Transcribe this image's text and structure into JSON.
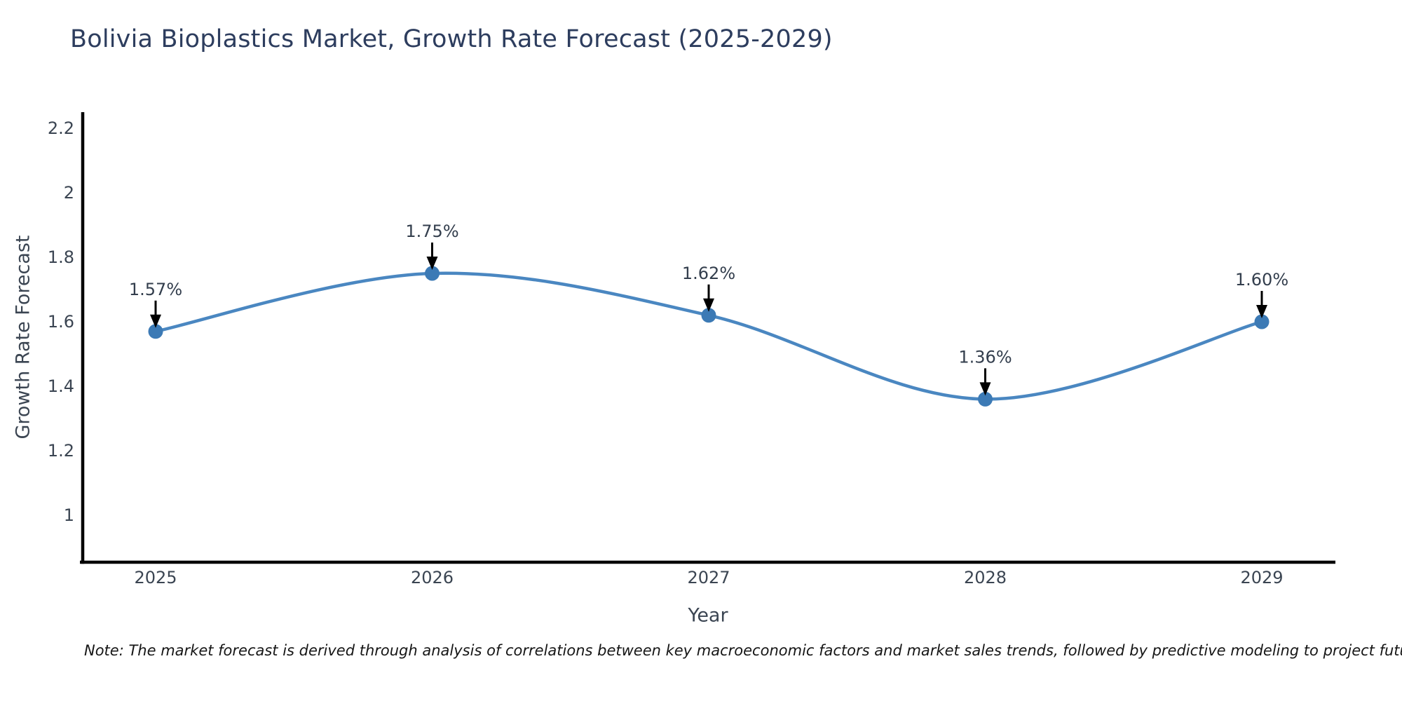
{
  "chart_data": {
    "type": "line",
    "title": "Bolivia Bioplastics Market, Growth Rate Forecast (2025-2029)",
    "xlabel": "Year",
    "ylabel": "Growth Rate Forecast",
    "categories": [
      "2025",
      "2026",
      "2027",
      "2028",
      "2029"
    ],
    "values": [
      1.57,
      1.75,
      1.62,
      1.36,
      1.6
    ],
    "point_labels": [
      "1.57%",
      "1.75%",
      "1.62%",
      "1.36%",
      "1.60%"
    ],
    "y_ticks": [
      1,
      1.2,
      1.4,
      1.6,
      1.8,
      2,
      2.2
    ],
    "ylim": [
      0.85,
      2.25
    ],
    "grid": false,
    "legend": null,
    "line_color": "#4a87c1",
    "marker_color": "#3c7ab5",
    "axis_color": "#000000",
    "annotation_arrow_color": "#000000"
  },
  "note": "Note: The market forecast is derived through analysis of correlations between key macroeconomic factors and market sales trends, followed by predictive modeling to project future sales"
}
